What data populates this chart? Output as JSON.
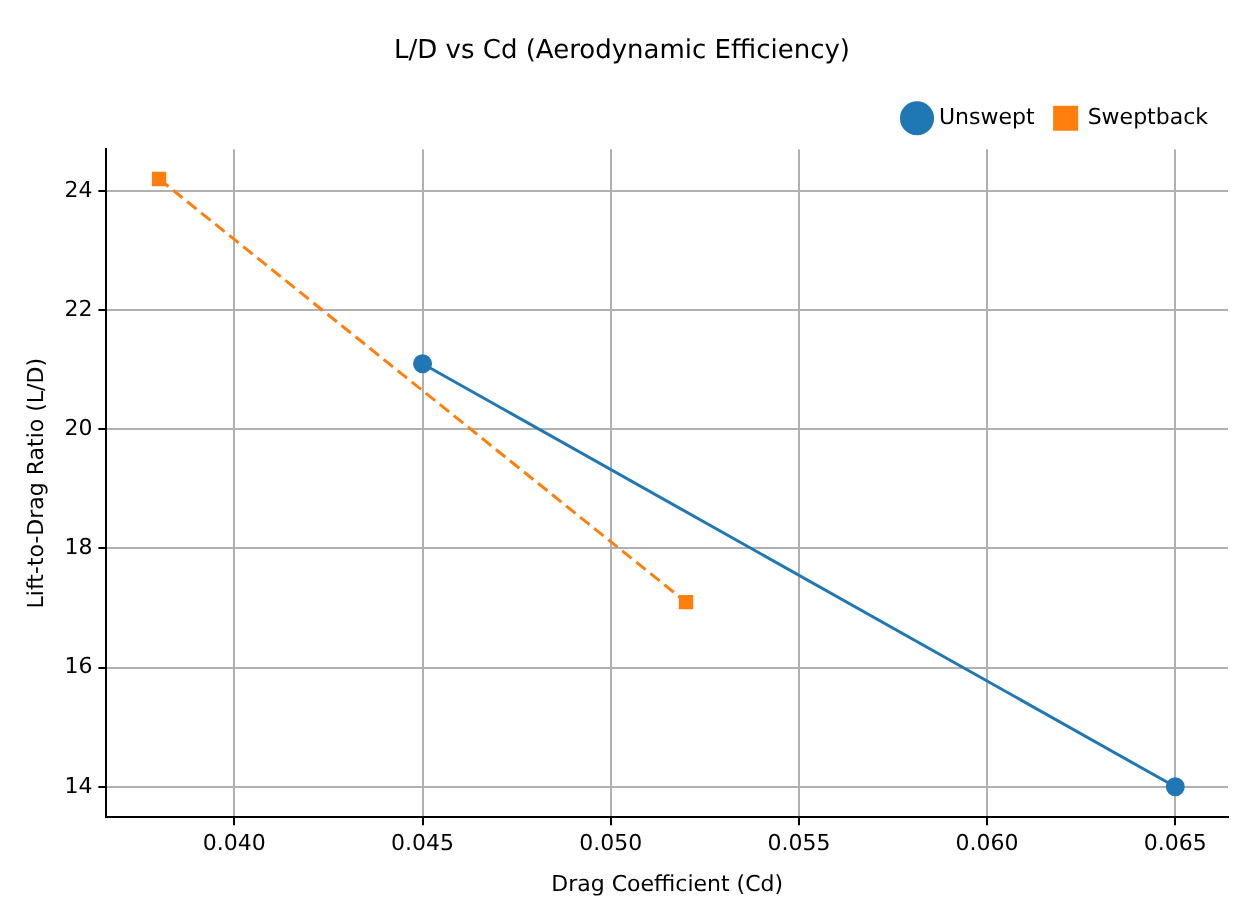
{
  "chart_data": {
    "type": "line",
    "title": "L/D vs Cd (Aerodynamic Efficiency)",
    "xlabel": "Drag Coefficient (Cd)",
    "ylabel": "Lift-to-Drag Ratio (L/D)",
    "series": [
      {
        "name": "Unswept",
        "color": "#1f77b4",
        "x": [
          0.045,
          0.065
        ],
        "values": [
          21.1,
          14.0
        ],
        "marker": "circle",
        "line_style": "solid"
      },
      {
        "name": "Sweptback",
        "color": "#ff7f0e",
        "x": [
          0.038,
          0.052
        ],
        "values": [
          24.2,
          17.1
        ],
        "marker": "square",
        "line_style": "dashed"
      }
    ],
    "xlim": [
      0.0366,
      0.0664
    ],
    "ylim": [
      13.49,
      24.7
    ],
    "xticks": [
      {
        "value": 0.04,
        "label": "0.040"
      },
      {
        "value": 0.045,
        "label": "0.045"
      },
      {
        "value": 0.05,
        "label": "0.050"
      },
      {
        "value": 0.055,
        "label": "0.055"
      },
      {
        "value": 0.06,
        "label": "0.060"
      },
      {
        "value": 0.065,
        "label": "0.065"
      }
    ],
    "yticks": [
      14,
      16,
      18,
      20,
      22,
      24
    ],
    "grid": true,
    "legend": "top right"
  }
}
